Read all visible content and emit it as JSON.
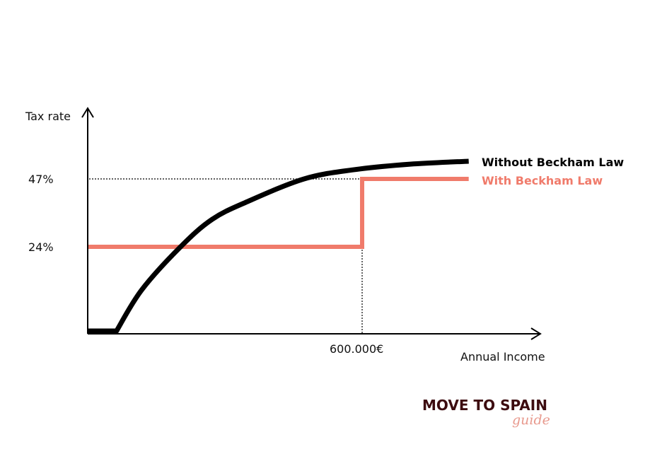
{
  "chart_data": {
    "type": "line",
    "title": "",
    "ylabel": "Tax rate",
    "xlabel": "Annual Income",
    "y_ticks": [
      {
        "value": 24,
        "label": "24%"
      },
      {
        "value": 47,
        "label": "47%"
      }
    ],
    "x_ticks": [
      {
        "value": 600,
        "label": "600.000€"
      }
    ],
    "grid": false,
    "legend_placement": "right, at line ends",
    "series": [
      {
        "name": "Without Beckham Law",
        "color": "#000000",
        "points": [
          [
            0,
            0
          ],
          [
            63,
            0
          ],
          [
            118,
            11.7
          ],
          [
            203,
            24
          ],
          [
            272,
            33.3
          ],
          [
            349,
            39.3
          ],
          [
            473,
            47
          ],
          [
            581,
            50.1
          ],
          [
            705,
            52
          ],
          [
            833,
            53
          ]
        ]
      },
      {
        "name": "With Beckham Law",
        "color": "#f07b6b",
        "points": [
          [
            0,
            24
          ],
          [
            600,
            24
          ],
          [
            600,
            47
          ],
          [
            833,
            47
          ]
        ]
      }
    ]
  },
  "logo": {
    "line1": "MOVE TO SPAIN",
    "line2": "guide",
    "color1": "#3d0c10",
    "color2": "#e8998d"
  }
}
